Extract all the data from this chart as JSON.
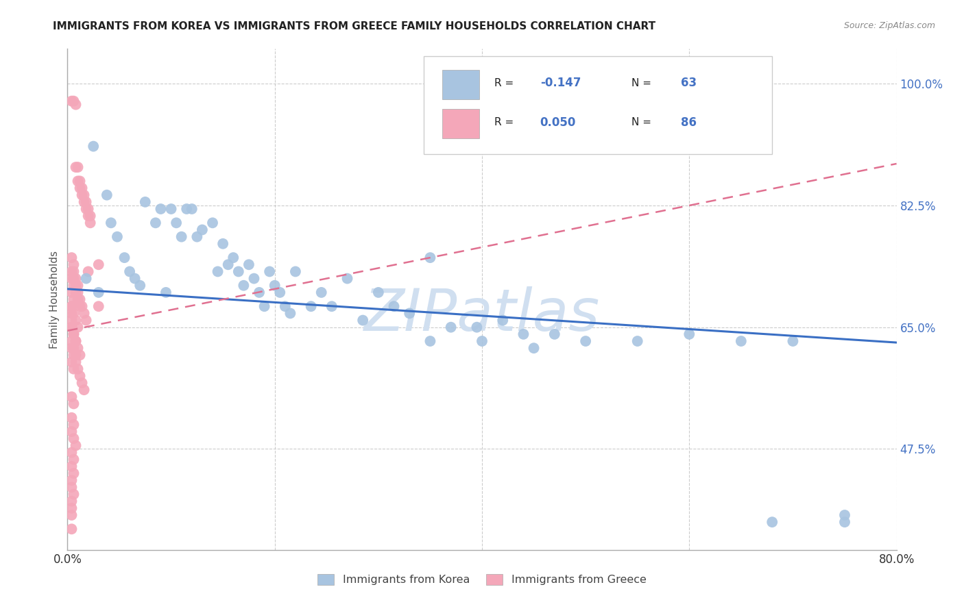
{
  "title": "IMMIGRANTS FROM KOREA VS IMMIGRANTS FROM GREECE FAMILY HOUSEHOLDS CORRELATION CHART",
  "source": "Source: ZipAtlas.com",
  "ylabel": "Family Households",
  "yticks": [
    "47.5%",
    "65.0%",
    "82.5%",
    "100.0%"
  ],
  "ytick_vals": [
    0.475,
    0.65,
    0.825,
    1.0
  ],
  "xlim": [
    0.0,
    0.8
  ],
  "ylim": [
    0.33,
    1.05
  ],
  "korea_color": "#a8c4e0",
  "greece_color": "#f4a7b9",
  "korea_line_color": "#3a6fc4",
  "greece_line_color": "#e07090",
  "watermark_color": "#d0dff0",
  "background_color": "#ffffff",
  "grid_color": "#cccccc",
  "axis_color": "#aaaaaa",
  "legend_text_color": "#4472c4",
  "title_color": "#222222",
  "source_color": "#888888",
  "ylabel_color": "#555555",
  "xtick_color": "#333333",
  "korea_line_y0": 0.705,
  "korea_line_y1": 0.628,
  "greece_line_y0": 0.645,
  "greece_line_y1": 0.885,
  "korea_scatter_x": [
    0.018,
    0.025,
    0.03,
    0.038,
    0.042,
    0.048,
    0.055,
    0.06,
    0.065,
    0.07,
    0.075,
    0.085,
    0.09,
    0.095,
    0.1,
    0.105,
    0.11,
    0.115,
    0.12,
    0.125,
    0.13,
    0.14,
    0.145,
    0.15,
    0.155,
    0.16,
    0.165,
    0.17,
    0.175,
    0.18,
    0.185,
    0.19,
    0.195,
    0.2,
    0.205,
    0.21,
    0.215,
    0.22,
    0.235,
    0.245,
    0.255,
    0.27,
    0.285,
    0.3,
    0.315,
    0.33,
    0.35,
    0.37,
    0.395,
    0.42,
    0.44,
    0.47,
    0.35,
    0.4,
    0.45,
    0.5,
    0.55,
    0.6,
    0.65,
    0.7,
    0.75,
    0.75,
    0.68
  ],
  "korea_scatter_y": [
    0.72,
    0.91,
    0.7,
    0.84,
    0.8,
    0.78,
    0.75,
    0.73,
    0.72,
    0.71,
    0.83,
    0.8,
    0.82,
    0.7,
    0.82,
    0.8,
    0.78,
    0.82,
    0.82,
    0.78,
    0.79,
    0.8,
    0.73,
    0.77,
    0.74,
    0.75,
    0.73,
    0.71,
    0.74,
    0.72,
    0.7,
    0.68,
    0.73,
    0.71,
    0.7,
    0.68,
    0.67,
    0.73,
    0.68,
    0.7,
    0.68,
    0.72,
    0.66,
    0.7,
    0.68,
    0.67,
    0.75,
    0.65,
    0.65,
    0.66,
    0.64,
    0.64,
    0.63,
    0.63,
    0.62,
    0.63,
    0.63,
    0.64,
    0.63,
    0.63,
    0.38,
    0.37,
    0.37
  ],
  "greece_scatter_x": [
    0.004,
    0.006,
    0.008,
    0.008,
    0.01,
    0.01,
    0.012,
    0.012,
    0.014,
    0.014,
    0.016,
    0.016,
    0.018,
    0.018,
    0.02,
    0.02,
    0.022,
    0.022,
    0.004,
    0.006,
    0.008,
    0.01,
    0.012,
    0.014,
    0.016,
    0.018,
    0.004,
    0.006,
    0.008,
    0.01,
    0.012,
    0.014,
    0.016,
    0.004,
    0.006,
    0.008,
    0.01,
    0.012,
    0.004,
    0.006,
    0.008,
    0.01,
    0.004,
    0.006,
    0.008,
    0.004,
    0.006,
    0.008,
    0.004,
    0.006,
    0.004,
    0.006,
    0.004,
    0.006,
    0.004,
    0.004,
    0.004,
    0.004,
    0.006,
    0.008,
    0.01,
    0.012,
    0.006,
    0.008,
    0.01,
    0.004,
    0.006,
    0.004,
    0.006,
    0.02,
    0.03,
    0.03,
    0.004,
    0.006,
    0.008,
    0.004,
    0.006,
    0.004,
    0.006,
    0.004,
    0.004,
    0.006,
    0.004,
    0.004,
    0.004,
    0.004
  ],
  "greece_scatter_y": [
    0.975,
    0.975,
    0.88,
    0.97,
    0.86,
    0.88,
    0.85,
    0.86,
    0.84,
    0.85,
    0.83,
    0.84,
    0.82,
    0.83,
    0.81,
    0.82,
    0.8,
    0.81,
    0.73,
    0.72,
    0.71,
    0.7,
    0.69,
    0.68,
    0.67,
    0.66,
    0.62,
    0.61,
    0.6,
    0.59,
    0.58,
    0.57,
    0.56,
    0.72,
    0.71,
    0.7,
    0.69,
    0.68,
    0.68,
    0.67,
    0.66,
    0.65,
    0.65,
    0.64,
    0.63,
    0.63,
    0.62,
    0.61,
    0.6,
    0.59,
    0.75,
    0.74,
    0.7,
    0.69,
    0.68,
    0.67,
    0.66,
    0.65,
    0.64,
    0.63,
    0.62,
    0.61,
    0.73,
    0.72,
    0.71,
    0.55,
    0.54,
    0.52,
    0.51,
    0.73,
    0.74,
    0.68,
    0.5,
    0.49,
    0.48,
    0.47,
    0.46,
    0.45,
    0.44,
    0.43,
    0.42,
    0.41,
    0.4,
    0.39,
    0.38,
    0.36
  ]
}
